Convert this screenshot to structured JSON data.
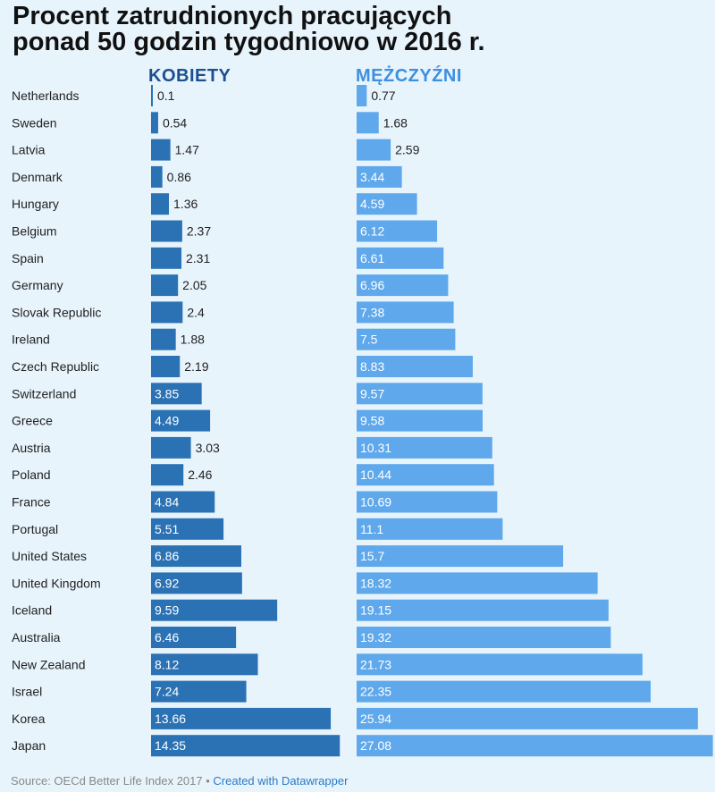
{
  "chart_data": {
    "type": "bar",
    "title": "Procent zatrudnionych pracujących ponad 50 godzin tygodniowo w 2016 r.",
    "categories": [
      "Netherlands",
      "Sweden",
      "Latvia",
      "Denmark",
      "Hungary",
      "Belgium",
      "Spain",
      "Germany",
      "Slovak Republic",
      "Ireland",
      "Czech Republic",
      "Switzerland",
      "Greece",
      "Austria",
      "Poland",
      "France",
      "Portugal",
      "United States",
      "United Kingdom",
      "Iceland",
      "Australia",
      "New Zealand",
      "Israel",
      "Korea",
      "Japan"
    ],
    "series": [
      {
        "name": "KOBIETY",
        "color": "#2b72b4",
        "values": [
          0.1,
          0.54,
          1.47,
          0.86,
          1.36,
          2.37,
          2.31,
          2.05,
          2.4,
          1.88,
          2.19,
          3.85,
          4.49,
          3.03,
          2.46,
          4.84,
          5.51,
          6.86,
          6.92,
          9.59,
          6.46,
          8.12,
          7.24,
          13.66,
          14.35
        ]
      },
      {
        "name": "MĘŻCZYŹNI",
        "color": "#5fa8ec",
        "values": [
          0.77,
          1.68,
          2.59,
          3.44,
          4.59,
          6.12,
          6.61,
          6.96,
          7.38,
          7.5,
          8.83,
          9.57,
          9.58,
          10.31,
          10.44,
          10.69,
          11.1,
          15.7,
          18.32,
          19.15,
          19.32,
          21.73,
          22.35,
          25.94,
          27.08
        ]
      }
    ],
    "xlabel": "",
    "ylabel": "",
    "grid": false
  },
  "title_line1": "Procent zatrudnionych pracujących",
  "title_line2": "ponad 50 godzin tygodniowo w 2016 r.",
  "source_text": "Source: OECd Better Life Index 2017 • ",
  "credit_text": "Created with Datawrapper"
}
